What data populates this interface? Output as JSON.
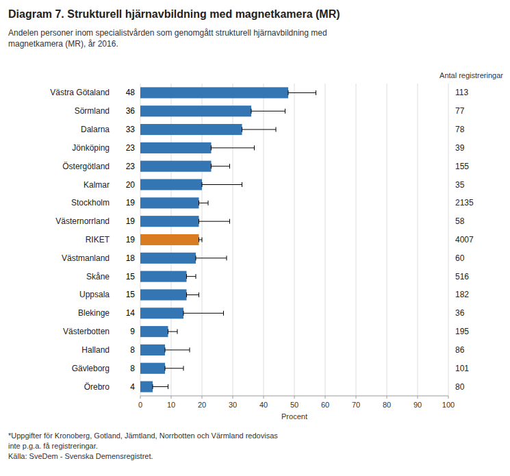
{
  "chart_data": {
    "type": "bar",
    "orientation": "horizontal",
    "title": "Diagram 7. Strukturell hjärnavbildning med magnetkamera (MR)",
    "subtitle": "Andelen personer inom specialistvården som genomgått strukturell hjärnavbildning med\nmagnetkamera (MR), år 2016.",
    "xlabel": "Procent",
    "right_label": "Antal registreringar",
    "footnote": "*Uppgifter för Kronoberg, Gotland, Jämtland, Norrbotten och Värmland redovisas\ninte p.g.a. få registreringar.\nKälla: SveDem - Svenska Demensregistret.",
    "categories": [
      "Västra Götaland",
      "Sörmland",
      "Dalarna",
      "Jönköping",
      "Östergötland",
      "Kalmar",
      "Stockholm",
      "Västernorrland",
      "RIKET",
      "Västmanland",
      "Skåne",
      "Uppsala",
      "Blekinge",
      "Västerbotten",
      "Halland",
      "Gävleborg",
      "Örebro"
    ],
    "values": [
      48,
      36,
      33,
      23,
      23,
      20,
      19,
      19,
      19,
      18,
      15,
      15,
      14,
      9,
      8,
      8,
      4
    ],
    "ci_high": [
      57,
      47,
      44,
      37,
      29,
      33,
      22,
      29,
      20,
      28,
      18,
      19,
      27,
      12,
      16,
      14,
      9
    ],
    "registrations": [
      113,
      77,
      78,
      39,
      155,
      35,
      2135,
      58,
      4007,
      60,
      516,
      182,
      36,
      195,
      86,
      101,
      80
    ],
    "colors": [
      "#3475b4",
      "#3475b4",
      "#3475b4",
      "#3475b4",
      "#3475b4",
      "#3475b4",
      "#3475b4",
      "#3475b4",
      "#d97b20",
      "#3475b4",
      "#3475b4",
      "#3475b4",
      "#3475b4",
      "#3475b4",
      "#3475b4",
      "#3475b4",
      "#3475b4"
    ],
    "xlim": [
      0,
      100
    ],
    "xticks": [
      0,
      10,
      20,
      30,
      40,
      50,
      60,
      70,
      80,
      90,
      100
    ],
    "grid": true,
    "data_labels": true
  }
}
